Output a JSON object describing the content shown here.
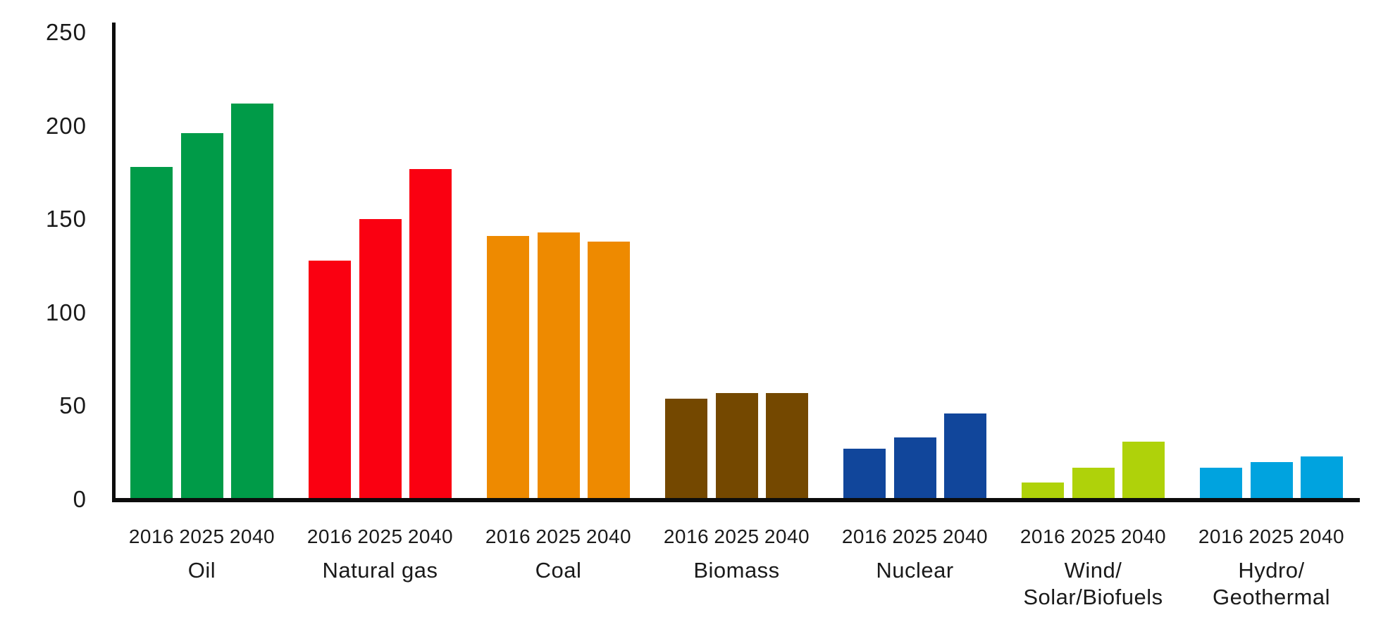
{
  "chart_data": {
    "type": "bar",
    "ylim": [
      0,
      250
    ],
    "yticks": [
      0,
      50,
      100,
      150,
      200,
      250
    ],
    "grid": false,
    "legend": "none",
    "years": [
      "2016",
      "2025",
      "2040"
    ],
    "groups": [
      {
        "label": "Oil",
        "color": "#009B48",
        "values": [
          178,
          196,
          212
        ]
      },
      {
        "label": "Natural gas",
        "color": "#FA0011",
        "values": [
          128,
          150,
          177
        ]
      },
      {
        "label": "Coal",
        "color": "#EE8A00",
        "values": [
          141,
          143,
          138
        ]
      },
      {
        "label": "Biomass",
        "color": "#744800",
        "values": [
          54,
          57,
          57
        ]
      },
      {
        "label": "Nuclear",
        "color": "#11469B",
        "values": [
          27,
          33,
          46
        ]
      },
      {
        "label": "Wind/\nSolar/Biofuels",
        "color": "#AFD20A",
        "values": [
          9,
          17,
          31
        ]
      },
      {
        "label": "Hydro/\nGeothermal",
        "color": "#00A3DF",
        "values": [
          17,
          20,
          23
        ]
      }
    ],
    "axis_color": "#0c0c0c"
  }
}
